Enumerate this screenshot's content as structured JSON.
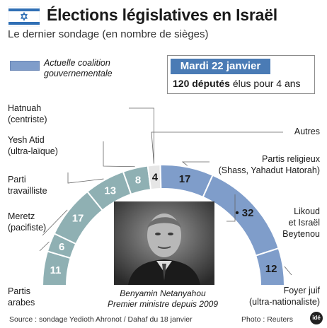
{
  "header": {
    "title": "Élections législatives en Israël",
    "subtitle": "Le dernier sondage (en nombre de sièges)",
    "flag_icon": "israel-flag-icon"
  },
  "legend": {
    "label": "Actuelle coalition gouvernementale",
    "color": "#7f9dca"
  },
  "info": {
    "date": "Mardi 22 janvier",
    "deputes_bold": "120 députés",
    "deputes_rest": " élus pour 4 ans"
  },
  "photo": {
    "caption_line1": "Benyamin Netanyahou",
    "caption_line2": "Premier ministre depuis 2009"
  },
  "footer": {
    "source": "Source : sondage Yedioth Ahronot / Dahaf du 18 janvier",
    "credit": "Photo : Reuters",
    "logo_text": "idé"
  },
  "colors": {
    "coalition": "#7f9dca",
    "opposition": "#8fb0b3",
    "autres": "#e6e6e6",
    "flag_blue": "#2f6fb5"
  },
  "chart_data": {
    "type": "pie",
    "variant": "semicircle parliament",
    "title": "Élections législatives en Israël",
    "subtitle": "Le dernier sondage (en nombre de sièges)",
    "total": 120,
    "series": [
      {
        "party": "Partis arabes",
        "values": [
          11
        ],
        "coalition": false
      },
      {
        "party": "Meretz (pacifiste)",
        "values": [
          6
        ],
        "coalition": false
      },
      {
        "party": "Parti travailliste",
        "values": [
          17
        ],
        "coalition": false
      },
      {
        "party": "Yesh Atid (ultra-laïque)",
        "values": [
          13
        ],
        "coalition": false
      },
      {
        "party": "Hatnuah (centriste)",
        "values": [
          8
        ],
        "coalition": false
      },
      {
        "party": "Autres",
        "values": [
          4
        ],
        "coalition": false
      },
      {
        "party": "Partis religieux (Shass, Yahadut Hatorah)",
        "values": [
          17
        ],
        "coalition": true
      },
      {
        "party": "Likoud et Israël Beytenou",
        "values": [
          32
        ],
        "coalition": true
      },
      {
        "party": "Foyer juif (ultra-nationaliste)",
        "values": [
          12
        ],
        "coalition": true
      }
    ]
  },
  "labels": {
    "partis_arabes": [
      "Partis",
      "arabes"
    ],
    "meretz": [
      "Meretz",
      "(pacifiste)"
    ],
    "travailliste": [
      "Parti",
      "travailliste"
    ],
    "yesh_atid": [
      "Yesh Atid",
      "(ultra-laïque)"
    ],
    "hatnuah": [
      "Hatnuah",
      "(centriste)"
    ],
    "autres": [
      "Autres"
    ],
    "religieux": [
      "Partis religieux",
      "(Shass, Yahadut Hatorah)"
    ],
    "likoud": [
      "Likoud",
      "et Israël",
      "Beytenou"
    ],
    "foyer_juif": [
      "Foyer juif",
      "(ultra-nationaliste)"
    ]
  }
}
